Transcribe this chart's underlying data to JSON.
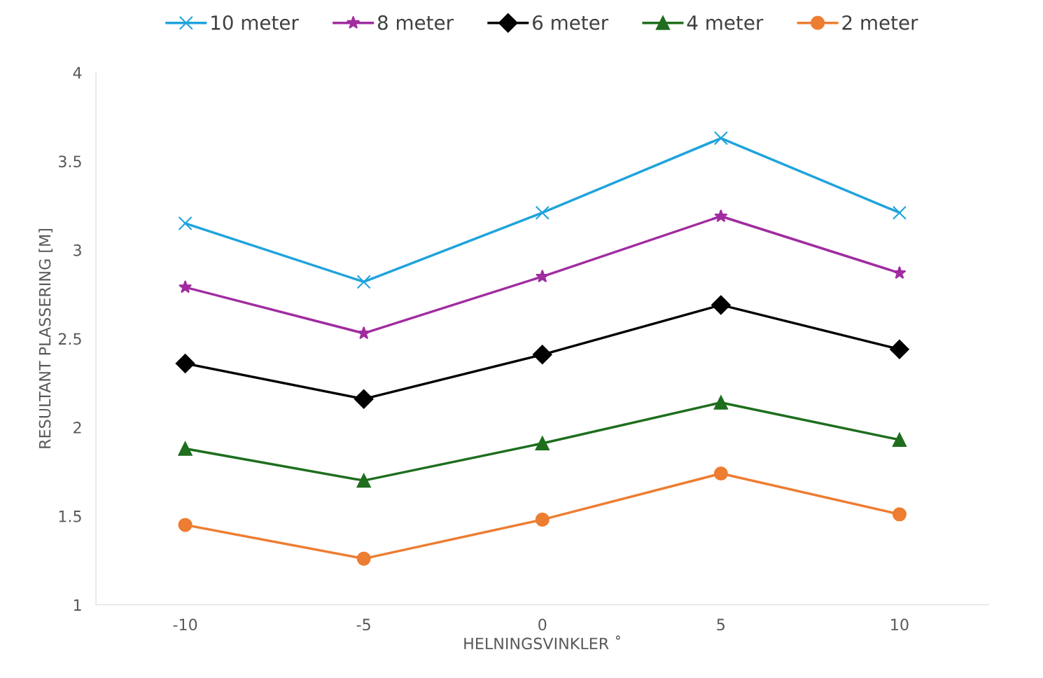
{
  "chart_data": {
    "type": "line",
    "xlabel": "HELNINGSVINKLER ˚",
    "ylabel": "RESULTANT PLASSERING [M]",
    "categories": [
      "-10",
      "-5",
      "0",
      "5",
      "10"
    ],
    "series": [
      {
        "name": "10 meter",
        "color": "#1fa3dc",
        "marker": "cross",
        "values": [
          3.15,
          2.82,
          3.21,
          3.63,
          3.21
        ]
      },
      {
        "name": "8 meter",
        "color": "#a02ca0",
        "marker": "star",
        "values": [
          2.79,
          2.53,
          2.85,
          3.19,
          2.87
        ]
      },
      {
        "name": "6 meter",
        "color": "#000000",
        "marker": "diamond",
        "values": [
          2.36,
          2.16,
          2.41,
          2.69,
          2.44
        ]
      },
      {
        "name": "4 meter",
        "color": "#1e6e1e",
        "marker": "triangle",
        "values": [
          1.88,
          1.7,
          1.91,
          2.14,
          1.93
        ]
      },
      {
        "name": "2 meter",
        "color": "#ed7d31",
        "marker": "circle",
        "values": [
          1.45,
          1.26,
          1.48,
          1.74,
          1.51
        ]
      }
    ],
    "ylim": [
      1,
      4
    ],
    "yticks": [
      1,
      1.5,
      2,
      2.5,
      3,
      3.5,
      4
    ],
    "grid": false,
    "legend": "top",
    "line_style": "solid"
  }
}
